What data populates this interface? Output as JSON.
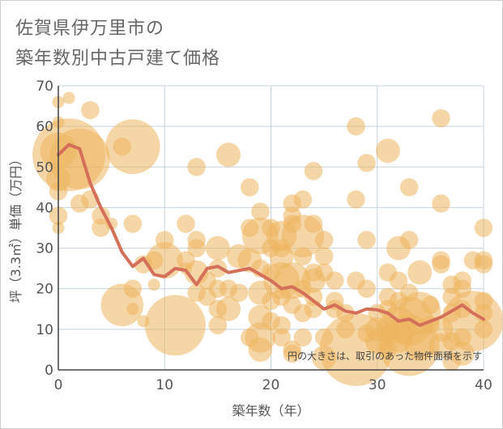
{
  "chart_data": {
    "type": "scatter",
    "title_lines": [
      "佐賀県伊万里市の",
      "築年数別中古戸建て価格"
    ],
    "xlabel": "築年数（年）",
    "ylabel": "坪（3.3㎡）単価（万円）",
    "xlim": [
      0,
      40
    ],
    "ylim": [
      0,
      70
    ],
    "xticks": [
      0,
      10,
      20,
      30,
      40
    ],
    "yticks": [
      0,
      10,
      20,
      30,
      40,
      50,
      60,
      70
    ],
    "grid": true,
    "note": "円の大きさは、取引のあった物件面積を示す",
    "colors": {
      "bubble": "#EDB45C",
      "line": "#D4705A",
      "grid": "#C5D3DF",
      "axis": "#444444"
    },
    "series": [
      {
        "type": "line",
        "x": [
          0,
          1,
          2,
          3,
          4,
          5,
          6,
          7,
          8,
          9,
          10,
          11,
          12,
          13,
          14,
          15,
          16,
          17,
          18,
          19,
          20,
          21,
          22,
          23,
          24,
          25,
          26,
          27,
          28,
          29,
          30,
          31,
          32,
          33,
          34,
          35,
          36,
          37,
          38,
          39,
          40
        ],
        "y": [
          53,
          55.5,
          54.5,
          46,
          40,
          35,
          29,
          25.5,
          27.5,
          23.5,
          23,
          25,
          24.5,
          21,
          25,
          25.5,
          24,
          24.5,
          25,
          23.5,
          22,
          20,
          20.5,
          19,
          17,
          15,
          16,
          14.5,
          14,
          15,
          14.8,
          14,
          12,
          12.5,
          11,
          12,
          13,
          14.5,
          16,
          14,
          12.5
        ]
      },
      {
        "type": "bubble",
        "points": [
          [
            0,
            66,
            1
          ],
          [
            0,
            61,
            1
          ],
          [
            0,
            54,
            3
          ],
          [
            0,
            47,
            2
          ],
          [
            0,
            44,
            1.5
          ],
          [
            0,
            38,
            1.5
          ],
          [
            0,
            35,
            1
          ],
          [
            1,
            67,
            1
          ],
          [
            1,
            53,
            6
          ],
          [
            2,
            52,
            5
          ],
          [
            2,
            41,
            1.5
          ],
          [
            3,
            64,
            1.5
          ],
          [
            3,
            42,
            1.5
          ],
          [
            4,
            38,
            1.5
          ],
          [
            4,
            35,
            1.5
          ],
          [
            5,
            36,
            1
          ],
          [
            6,
            55,
            1.5
          ],
          [
            6,
            16,
            3.5
          ],
          [
            7,
            55,
            4.5
          ],
          [
            7,
            36,
            1.5
          ],
          [
            7,
            20,
            1.5
          ],
          [
            7,
            15,
            1
          ],
          [
            8,
            12,
            1
          ],
          [
            8,
            26,
            1.5
          ],
          [
            9,
            27,
            1.5
          ],
          [
            9,
            21,
            1
          ],
          [
            10,
            32,
            1.5
          ],
          [
            10,
            27,
            3
          ],
          [
            11,
            11,
            5
          ],
          [
            12,
            36,
            1.5
          ],
          [
            12,
            27,
            1.5
          ],
          [
            12,
            25,
            1
          ],
          [
            13,
            50,
            1.5
          ],
          [
            13,
            32,
            1.5
          ],
          [
            13,
            30,
            1.5
          ],
          [
            13,
            24,
            2
          ],
          [
            13,
            19,
            1.5
          ],
          [
            14,
            22,
            1.5
          ],
          [
            14,
            18,
            1.5
          ],
          [
            15,
            30,
            2
          ],
          [
            15,
            25,
            1.5
          ],
          [
            15,
            20,
            1.5
          ],
          [
            15,
            15,
            1.5
          ],
          [
            15,
            11,
            1.5
          ],
          [
            16,
            53,
            2
          ],
          [
            16,
            20,
            1.5
          ],
          [
            16,
            15,
            2
          ],
          [
            17,
            28,
            2
          ],
          [
            17,
            19,
            1.5
          ],
          [
            18,
            45,
            1.5
          ],
          [
            18,
            35,
            1.5
          ],
          [
            18,
            27,
            2
          ],
          [
            18,
            8,
            1.5
          ],
          [
            19,
            39,
            1.5
          ],
          [
            19,
            33,
            3
          ],
          [
            19,
            25,
            1.5
          ],
          [
            19,
            19,
            2
          ],
          [
            19,
            13,
            2
          ],
          [
            19,
            8,
            2.5
          ],
          [
            19,
            5,
            2
          ],
          [
            20,
            35,
            1.5
          ],
          [
            20,
            30,
            1.5
          ],
          [
            20,
            24,
            1.5
          ],
          [
            20,
            17,
            1.5
          ],
          [
            20,
            12,
            1.5
          ],
          [
            21,
            33,
            2.5
          ],
          [
            21,
            30,
            1.5
          ],
          [
            21,
            28,
            2
          ],
          [
            21,
            22,
            3
          ],
          [
            21,
            18,
            1.5
          ],
          [
            21,
            11,
            1.5
          ],
          [
            21,
            8,
            1.5
          ],
          [
            22,
            41,
            1.5
          ],
          [
            22,
            38,
            1.5
          ],
          [
            22,
            36,
            1.5
          ],
          [
            22,
            22,
            3
          ],
          [
            22,
            16,
            1.5
          ],
          [
            22,
            5,
            1.5
          ],
          [
            22,
            4,
            1.5
          ],
          [
            23,
            42,
            1.5
          ],
          [
            23,
            33,
            3.5
          ],
          [
            23,
            28,
            1.5
          ],
          [
            23,
            20,
            1.5
          ],
          [
            23,
            14,
            1.5
          ],
          [
            23,
            8,
            1.5
          ],
          [
            24,
            49,
            1.5
          ],
          [
            24,
            36,
            1.5
          ],
          [
            24,
            24,
            1.5
          ],
          [
            24,
            22,
            2
          ],
          [
            24,
            18,
            1.5
          ],
          [
            24,
            15,
            1.5
          ],
          [
            25,
            32,
            1.5
          ],
          [
            25,
            28,
            1.5
          ],
          [
            25,
            24,
            1.5
          ],
          [
            25,
            8,
            1.5
          ],
          [
            25,
            3,
            2
          ],
          [
            26,
            22,
            1.5
          ],
          [
            26,
            17,
            1.5
          ],
          [
            26,
            15,
            1.5
          ],
          [
            27,
            14,
            1.5
          ],
          [
            27,
            10,
            1.5
          ],
          [
            28,
            60,
            1.5
          ],
          [
            28,
            42,
            1.5
          ],
          [
            28,
            22,
            1.5
          ],
          [
            28,
            5,
            6
          ],
          [
            29,
            51,
            1.5
          ],
          [
            29,
            32,
            1.5
          ],
          [
            29,
            20,
            1.5
          ],
          [
            29,
            9,
            1.5
          ],
          [
            30,
            14,
            1.5
          ],
          [
            30,
            10,
            2
          ],
          [
            30,
            7,
            2
          ],
          [
            31,
            54,
            2
          ],
          [
            31,
            24,
            1.5
          ],
          [
            31,
            18,
            1.5
          ],
          [
            31,
            15,
            1.5
          ],
          [
            31,
            10,
            2
          ],
          [
            31,
            5,
            1.5
          ],
          [
            32,
            30,
            2
          ],
          [
            32,
            22,
            1.5
          ],
          [
            32,
            17,
            1.5
          ],
          [
            32,
            11,
            3
          ],
          [
            32,
            8,
            2.5
          ],
          [
            33,
            45,
            1.5
          ],
          [
            33,
            32,
            1.5
          ],
          [
            33,
            19,
            1.5
          ],
          [
            33,
            12,
            4
          ],
          [
            33,
            6,
            5
          ],
          [
            34,
            24,
            2
          ],
          [
            34,
            14,
            3.5
          ],
          [
            34,
            6,
            2.5
          ],
          [
            35,
            16,
            1.5
          ],
          [
            35,
            11,
            1.5
          ],
          [
            36,
            62,
            1.5
          ],
          [
            36,
            41,
            1.5
          ],
          [
            36,
            27,
            1.5
          ],
          [
            36,
            26,
            1.5
          ],
          [
            36,
            10,
            2
          ],
          [
            36,
            6,
            2
          ],
          [
            37,
            21,
            1.5
          ],
          [
            37,
            18,
            1.5
          ],
          [
            37,
            14,
            1.5
          ],
          [
            37,
            7,
            1.5
          ],
          [
            37,
            2,
            1.5
          ],
          [
            38,
            22,
            1.5
          ],
          [
            38,
            20,
            1.5
          ],
          [
            38,
            15,
            1.5
          ],
          [
            38,
            8,
            1.5
          ],
          [
            38,
            4,
            2
          ],
          [
            39,
            27,
            1.5
          ],
          [
            39,
            12,
            5
          ],
          [
            40,
            35,
            1.5
          ],
          [
            40,
            27,
            1.5
          ],
          [
            40,
            26,
            1.5
          ],
          [
            40,
            17,
            1.5
          ],
          [
            40,
            14,
            1.5
          ],
          [
            40,
            10,
            1.5
          ]
        ]
      }
    ]
  }
}
